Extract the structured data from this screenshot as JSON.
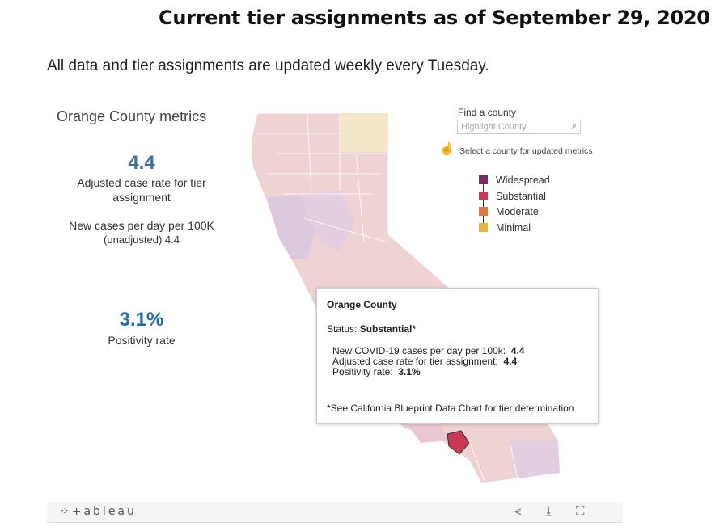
{
  "header": {
    "title": "Current tier assignments as of September 29, 2020",
    "subtitle": "All data and tier assignments are updated weekly every Tuesday."
  },
  "metrics": {
    "title": "Orange County metrics",
    "adjusted_case_rate": "4.4",
    "adjusted_case_rate_label_1": "Adjusted case rate for tier",
    "adjusted_case_rate_label_2": "assignment",
    "new_cases_label": "New cases per day per 100K",
    "new_cases_unadjusted": "(unadjusted) 4.4",
    "positivity_rate": "3.1%",
    "positivity_label": "Positivity rate"
  },
  "finder": {
    "label": "Find a county",
    "placeholder": "Highlight County",
    "hint": "Select a county for updated metrics"
  },
  "legend": [
    {
      "label": "Widespread",
      "color": "#7b2a63"
    },
    {
      "label": "Substantial",
      "color": "#c93a52"
    },
    {
      "label": "Moderate",
      "color": "#e07a45"
    },
    {
      "label": "Minimal",
      "color": "#e8b73a"
    }
  ],
  "tooltip": {
    "county": "Orange County",
    "status_label": "Status:",
    "status_value": "Substantial*",
    "line1_label": "New COVID-19 cases per day per 100k:",
    "line1_value": "4.4",
    "line2_label": "Adjusted case rate for tier assignment:",
    "line2_value": "4.4",
    "line3_label": "Positivity rate:",
    "line3_value": "3.1%",
    "note": "*See California Blueprint Data Chart for tier determination"
  },
  "toolbar": {
    "logo": "+ableau"
  }
}
